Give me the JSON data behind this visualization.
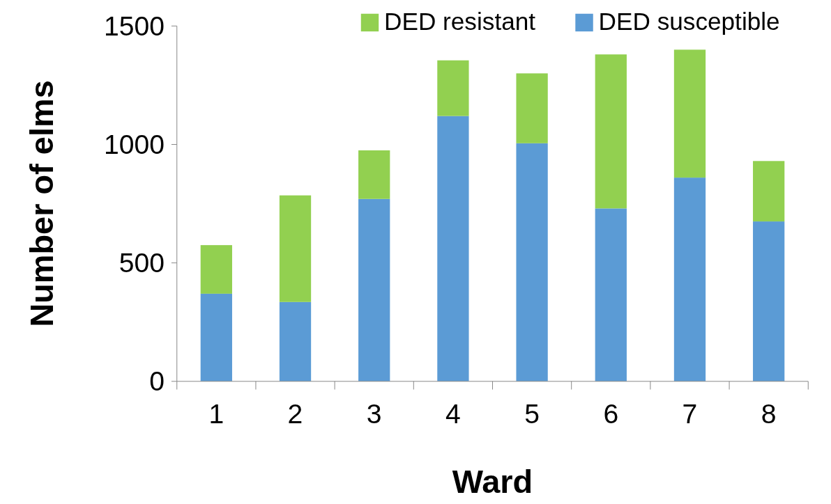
{
  "chart_data": {
    "type": "bar",
    "stacked": true,
    "xlabel": "Ward",
    "ylabel": "Number of elms",
    "categories": [
      "1",
      "2",
      "3",
      "4",
      "5",
      "6",
      "7",
      "8"
    ],
    "series": [
      {
        "name": "DED susceptible",
        "color": "#5b9bd5",
        "values": [
          370,
          335,
          770,
          1120,
          1005,
          730,
          860,
          675
        ]
      },
      {
        "name": "DED resistant",
        "color": "#92d050",
        "values": [
          205,
          450,
          205,
          235,
          295,
          650,
          540,
          255
        ]
      }
    ],
    "ylim": [
      0,
      1500
    ],
    "yticks": [
      0,
      500,
      1000,
      1500
    ],
    "grid": false,
    "legend": "top right"
  }
}
